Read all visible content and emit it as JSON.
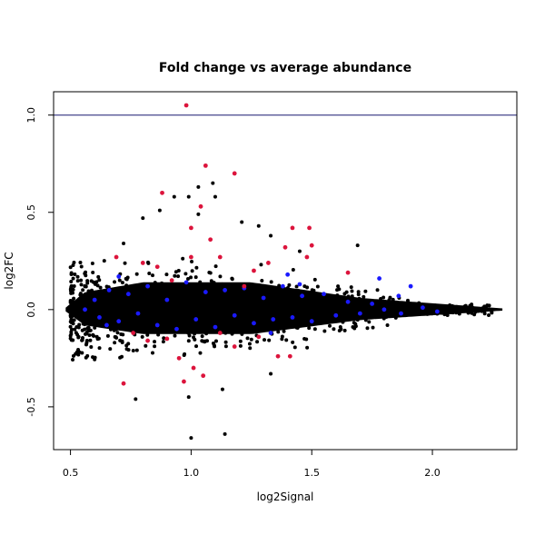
{
  "chart_data": {
    "type": "scatter",
    "title": "Fold change vs average abundance",
    "xlabel": "log2Signal",
    "ylabel": "log2FC",
    "xlim": [
      0.43,
      2.35
    ],
    "ylim": [
      -0.72,
      1.12
    ],
    "x_ticks": [
      0.5,
      1.0,
      1.5,
      2.0
    ],
    "x_tick_labels": [
      "0.5",
      "1.0",
      "1.5",
      "2.0"
    ],
    "y_ticks": [
      -0.5,
      0.0,
      0.5,
      1.0
    ],
    "y_tick_labels": [
      "-0.5",
      "0.0",
      "0.5",
      "1.0"
    ],
    "reference_line": {
      "y": 1.0,
      "color": "#191970"
    },
    "grid": false,
    "legend": "none",
    "colors": {
      "background": "#000000",
      "highlight_blue": "#1a1aff",
      "highlight_red": "#dc143c"
    },
    "series": [
      {
        "color": "#dc143c",
        "points": [
          [
            0.98,
            1.05
          ],
          [
            1.06,
            0.74
          ],
          [
            1.18,
            0.7
          ],
          [
            0.88,
            0.6
          ],
          [
            1.0,
            0.42
          ],
          [
            1.04,
            0.53
          ],
          [
            1.08,
            0.36
          ],
          [
            1.42,
            0.42
          ],
          [
            1.49,
            0.42
          ],
          [
            1.5,
            0.33
          ],
          [
            1.48,
            0.27
          ],
          [
            1.39,
            0.32
          ],
          [
            1.12,
            0.27
          ],
          [
            1.26,
            0.2
          ],
          [
            1.32,
            0.24
          ],
          [
            1.65,
            0.19
          ],
          [
            0.69,
            0.27
          ],
          [
            0.8,
            0.24
          ],
          [
            0.86,
            0.22
          ],
          [
            0.92,
            0.15
          ],
          [
            1.0,
            0.27
          ],
          [
            1.22,
            0.12
          ],
          [
            0.72,
            -0.38
          ],
          [
            0.97,
            -0.37
          ],
          [
            1.05,
            -0.34
          ],
          [
            0.82,
            -0.16
          ],
          [
            0.9,
            -0.15
          ],
          [
            1.01,
            -0.3
          ],
          [
            0.95,
            -0.25
          ],
          [
            1.36,
            -0.24
          ],
          [
            1.41,
            -0.24
          ],
          [
            1.28,
            -0.14
          ],
          [
            1.18,
            -0.19
          ],
          [
            1.12,
            -0.12
          ],
          [
            0.76,
            -0.12
          ]
        ]
      },
      {
        "color": "#1a1aff",
        "points": [
          [
            0.56,
            0.0
          ],
          [
            0.6,
            0.05
          ],
          [
            0.62,
            -0.04
          ],
          [
            0.66,
            0.1
          ],
          [
            0.7,
            -0.06
          ],
          [
            0.74,
            0.08
          ],
          [
            0.78,
            -0.02
          ],
          [
            0.82,
            0.12
          ],
          [
            0.86,
            -0.08
          ],
          [
            0.9,
            0.05
          ],
          [
            0.94,
            -0.1
          ],
          [
            0.98,
            0.14
          ],
          [
            1.02,
            -0.05
          ],
          [
            1.06,
            0.09
          ],
          [
            1.1,
            -0.09
          ],
          [
            1.14,
            0.1
          ],
          [
            1.18,
            -0.03
          ],
          [
            1.22,
            0.11
          ],
          [
            1.26,
            -0.07
          ],
          [
            1.3,
            0.06
          ],
          [
            1.34,
            -0.05
          ],
          [
            1.38,
            0.12
          ],
          [
            1.42,
            -0.04
          ],
          [
            1.46,
            0.07
          ],
          [
            1.5,
            -0.06
          ],
          [
            1.55,
            0.08
          ],
          [
            1.6,
            -0.03
          ],
          [
            1.65,
            0.04
          ],
          [
            1.7,
            -0.02
          ],
          [
            1.75,
            0.03
          ],
          [
            1.8,
            0.0
          ],
          [
            1.86,
            0.07
          ],
          [
            1.91,
            0.12
          ],
          [
            1.96,
            0.01
          ],
          [
            2.02,
            -0.01
          ],
          [
            0.7,
            0.17
          ],
          [
            1.4,
            0.18
          ],
          [
            1.78,
            0.16
          ],
          [
            1.33,
            -0.12
          ],
          [
            0.65,
            -0.08
          ],
          [
            1.45,
            0.13
          ],
          [
            1.87,
            -0.02
          ]
        ]
      }
    ]
  }
}
